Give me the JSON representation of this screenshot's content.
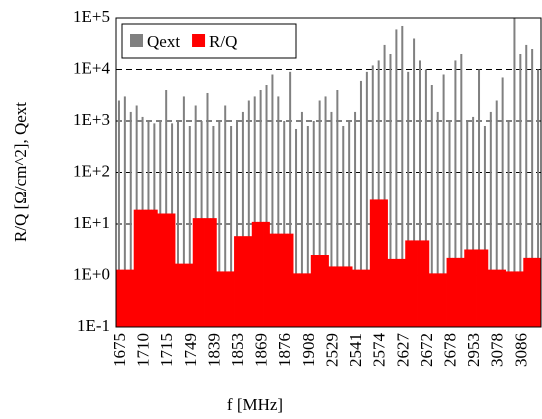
{
  "chart_data": {
    "type": "bar",
    "xlabel": "f  [MHz]",
    "ylabel": "R/Q  [Ω/cm^2], Qext",
    "categories": [
      "1675",
      null,
      null,
      null,
      "1710",
      null,
      null,
      null,
      "1715",
      null,
      null,
      null,
      "1749",
      null,
      null,
      null,
      "1839",
      null,
      null,
      null,
      "1853",
      null,
      null,
      null,
      "1869",
      null,
      null,
      null,
      "1876",
      null,
      null,
      null,
      "1908",
      null,
      null,
      null,
      "2529",
      null,
      null,
      null,
      "2541",
      null,
      null,
      null,
      "2574",
      null,
      null,
      null,
      "2627",
      null,
      null,
      null,
      "2672",
      null,
      null,
      null,
      "2678",
      null,
      null,
      null,
      "2953",
      null,
      null,
      null,
      "3078",
      null,
      null,
      null,
      "3086",
      null,
      null,
      null
    ],
    "series": [
      {
        "name": "Qext",
        "color": "#808080",
        "values": [
          2500,
          3000,
          1500,
          2000,
          1200,
          1000,
          900,
          1000,
          4000,
          900,
          1000,
          3000,
          800,
          2000,
          1000,
          3500,
          800,
          1000,
          2000,
          800,
          1000,
          1500,
          2500,
          3000,
          4000,
          5000,
          8000,
          3000,
          1000,
          9000,
          700,
          1500,
          800,
          1000,
          2500,
          3000,
          1500,
          4000,
          800,
          1000,
          1500,
          6000,
          9000,
          12000,
          15000,
          30000,
          20000,
          60000,
          70000,
          9000,
          40000,
          15000,
          10000,
          5000,
          1500,
          8000,
          1000,
          15000,
          20000,
          1000,
          1200,
          10000,
          800,
          1500,
          2500,
          7000,
          1000,
          100000,
          20000,
          30000,
          25000,
          10000
        ]
      },
      {
        "name": "R/Q",
        "color": "#ff0000",
        "values": [
          1.3,
          1.3,
          1.3,
          19,
          19,
          19,
          19,
          16,
          16,
          16,
          1.7,
          1.7,
          1.7,
          13,
          13,
          13,
          13,
          1.2,
          1.2,
          1.2,
          5.8,
          5.8,
          5.8,
          11,
          11,
          11,
          6.5,
          6.5,
          6.5,
          6.5,
          1.1,
          1.1,
          1.1,
          2.5,
          2.5,
          2.5,
          1.5,
          1.5,
          1.5,
          1.5,
          1.3,
          1.3,
          1.3,
          30,
          30,
          30,
          2.1,
          2.1,
          2.1,
          4.8,
          4.8,
          4.8,
          4.8,
          1.1,
          1.1,
          1.1,
          2.2,
          2.2,
          2.2,
          3.2,
          3.2,
          3.2,
          3.2,
          1.3,
          1.3,
          1.3,
          1.2,
          1.2,
          1.2,
          2.2,
          2.2,
          2.2
        ]
      }
    ],
    "ylim": [
      0.1,
      100000
    ],
    "yticks": [
      {
        "value": 0.1,
        "label": "1E-1"
      },
      {
        "value": 1,
        "label": "1E+0"
      },
      {
        "value": 10,
        "label": "1E+1"
      },
      {
        "value": 100,
        "label": "1E+2"
      },
      {
        "value": 1000,
        "label": "1E+3"
      },
      {
        "value": 10000,
        "label": "1E+4"
      },
      {
        "value": 100000,
        "label": "1E+5"
      }
    ],
    "log_scale": true,
    "grid": true,
    "legend": "upper left"
  }
}
